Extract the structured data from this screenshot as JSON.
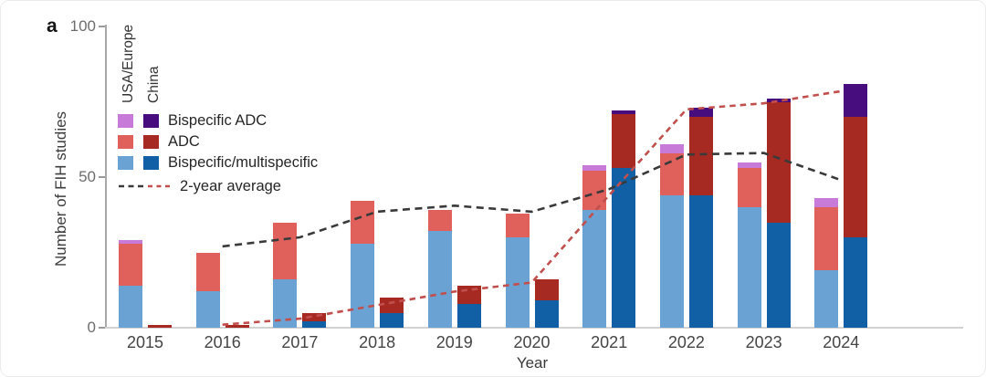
{
  "panel_label": "a",
  "axes": {
    "y_label": "Number of FIH studies",
    "x_label": "Year",
    "y_ticks": [
      0,
      50,
      100
    ]
  },
  "legend": {
    "column_headers": [
      "USA/Europe",
      "China"
    ],
    "rows": [
      {
        "label": "Bispecific ADC",
        "colors": [
          "#c87ad8",
          "#470c7d"
        ]
      },
      {
        "label": "ADC",
        "colors": [
          "#e0605c",
          "#a62a22"
        ]
      },
      {
        "label": "Bispecific/multispecific",
        "colors": [
          "#6aa2d4",
          "#1160a6"
        ]
      }
    ],
    "line_label": "2-year average",
    "line_colors": [
      "#3a3a3a",
      "#c14f4d"
    ]
  },
  "chart_data": {
    "type": "bar",
    "stacked": true,
    "title": "",
    "xlabel": "Year",
    "ylabel": "Number of FIH studies",
    "ylim": [
      0,
      100
    ],
    "y_ticks": [
      0,
      50,
      100
    ],
    "grid": false,
    "legend_position": "top-left",
    "categories": [
      "2015",
      "2016",
      "2017",
      "2018",
      "2019",
      "2020",
      "2021",
      "2022",
      "2023",
      "2024"
    ],
    "groups": [
      {
        "name": "USA/Europe",
        "series": [
          {
            "name": "Bispecific/multispecific",
            "color": "#6aa2d4",
            "values": [
              14,
              12,
              16,
              28,
              32,
              30,
              39,
              44,
              40,
              19
            ]
          },
          {
            "name": "ADC",
            "color": "#e0605c",
            "values": [
              14,
              13,
              19,
              14,
              7,
              8,
              13,
              14,
              13,
              21
            ]
          },
          {
            "name": "Bispecific ADC",
            "color": "#c87ad8",
            "values": [
              1,
              0,
              0,
              0,
              0,
              0,
              2,
              3,
              2,
              3
            ]
          }
        ]
      },
      {
        "name": "China",
        "series": [
          {
            "name": "Bispecific/multispecific",
            "color": "#1160a6",
            "values": [
              0,
              0,
              2,
              5,
              8,
              9,
              53,
              44,
              35,
              30
            ]
          },
          {
            "name": "ADC",
            "color": "#a62a22",
            "values": [
              1,
              1,
              3,
              5,
              6,
              7,
              18,
              26,
              40,
              40
            ]
          },
          {
            "name": "Bispecific ADC",
            "color": "#470c7d",
            "values": [
              0,
              0,
              0,
              0,
              0,
              0,
              1,
              3,
              1,
              11
            ]
          }
        ]
      }
    ],
    "lines": [
      {
        "name": "USA/Europe 2-year average",
        "color": "#3a3a3a",
        "x": [
          "2016",
          "2017",
          "2018",
          "2019",
          "2020",
          "2021",
          "2022",
          "2023",
          "2024"
        ],
        "values": [
          27,
          30,
          38.5,
          40.5,
          38.5,
          46,
          57.5,
          58,
          49
        ]
      },
      {
        "name": "China 2-year average",
        "color": "#c14f4d",
        "x": [
          "2016",
          "2017",
          "2018",
          "2019",
          "2020",
          "2021",
          "2022",
          "2023",
          "2024"
        ],
        "values": [
          1,
          3,
          7.5,
          12,
          15,
          44,
          72.5,
          74.5,
          78.5
        ]
      }
    ]
  }
}
